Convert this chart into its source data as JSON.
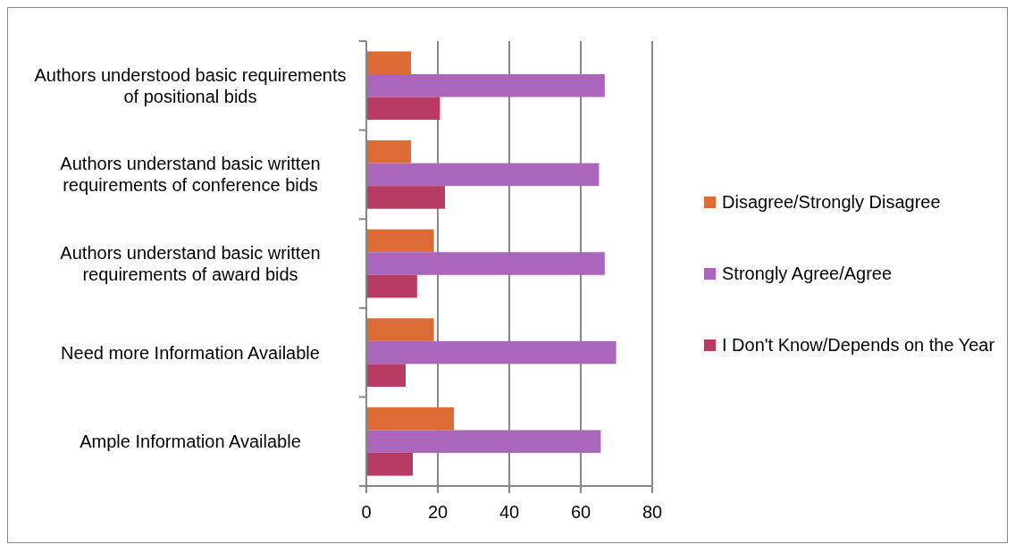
{
  "chart_data": {
    "type": "bar",
    "orientation": "horizontal",
    "categories": [
      "Authors understood basic requirements of positional bids",
      "Authors understand basic written requirements of conference bids",
      "Authors understand basic written requirements of award bids",
      "Need more Information Available",
      "Ample Information Available"
    ],
    "series": [
      {
        "name": "Disagree/Strongly Disagree",
        "color": "#dd6b35",
        "values": [
          12.5,
          12.5,
          18.9,
          18.9,
          24.5
        ]
      },
      {
        "name": "Strongly Agree/Agree",
        "color": "#aa66bb",
        "values": [
          66.7,
          65.1,
          66.7,
          69.9,
          65.6
        ]
      },
      {
        "name": "I Don't Know/Depends on the Year",
        "color": "#b73b62",
        "values": [
          20.6,
          22,
          14.2,
          11,
          13
        ]
      }
    ],
    "xlim": [
      0,
      80
    ],
    "xticks": [
      0,
      20,
      40,
      60,
      80
    ],
    "grid": "x",
    "legend": "right"
  }
}
